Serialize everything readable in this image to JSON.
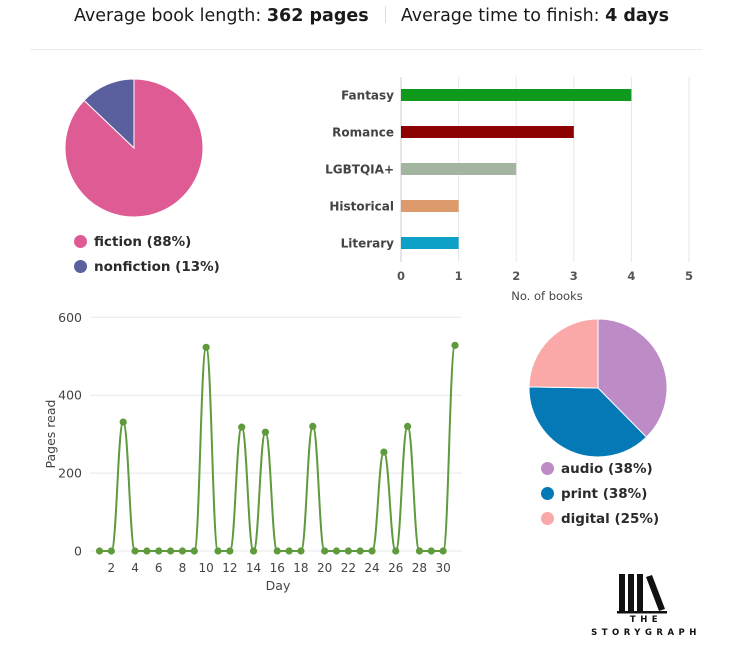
{
  "header": {
    "avg_length_label": "Average book length:",
    "avg_length_value": "362 pages",
    "avg_time_label": "Average time to finish:",
    "avg_time_value": "4 days"
  },
  "colors": {
    "fiction": "#df5b94",
    "nonfiction": "#5a5f9e",
    "fantasy": "#0f9a1e",
    "romance": "#8b0000",
    "lgbtqia": "#a3b5a0",
    "historical": "#dd9b6c",
    "literary": "#0ea1c7",
    "line": "#5f9a3c",
    "audio": "#bd8cc6",
    "print": "#0479b5",
    "digital": "#fba8a8"
  },
  "chart_data": [
    {
      "type": "pie",
      "slices": [
        {
          "label": "fiction (88%)",
          "value": 88,
          "color": "#df5b94"
        },
        {
          "label": "nonfiction (13%)",
          "value": 13,
          "color": "#5a5f9e"
        }
      ],
      "legend_position": "bottom"
    },
    {
      "type": "bar",
      "orientation": "horizontal",
      "categories": [
        "Fantasy",
        "Romance",
        "LGBTQIA+",
        "Historical",
        "Literary"
      ],
      "values": [
        4,
        3,
        2,
        1,
        1
      ],
      "bar_colors": [
        "#0f9a1e",
        "#8b0000",
        "#a3b5a0",
        "#dd9b6c",
        "#0ea1c7"
      ],
      "xlabel": "No. of books",
      "xlim": [
        0,
        5
      ],
      "xticks": [
        "0",
        "1",
        "2",
        "3",
        "4",
        "5"
      ],
      "grid": true
    },
    {
      "type": "line",
      "x": [
        1,
        2,
        3,
        4,
        5,
        6,
        7,
        8,
        9,
        10,
        11,
        12,
        13,
        14,
        15,
        16,
        17,
        18,
        19,
        20,
        21,
        22,
        23,
        24,
        25,
        26,
        27,
        28,
        29,
        30,
        31
      ],
      "values": [
        0,
        0,
        331,
        0,
        0,
        0,
        0,
        0,
        0,
        523,
        0,
        0,
        318,
        0,
        305,
        0,
        0,
        0,
        320,
        0,
        0,
        0,
        0,
        0,
        254,
        0,
        320,
        0,
        0,
        0,
        528
      ],
      "xlabel": "Day",
      "ylabel": "Pages read",
      "ylim": [
        0,
        600
      ],
      "yticks": [
        "0",
        "200",
        "400",
        "600"
      ],
      "xticks": [
        "2",
        "4",
        "6",
        "8",
        "10",
        "12",
        "14",
        "16",
        "18",
        "20",
        "22",
        "24",
        "26",
        "28",
        "30"
      ],
      "grid": true,
      "color": "#5f9a3c"
    },
    {
      "type": "pie",
      "slices": [
        {
          "label": "audio (38%)",
          "value": 38,
          "color": "#bd8cc6"
        },
        {
          "label": "print (38%)",
          "value": 38,
          "color": "#0479b5"
        },
        {
          "label": "digital (25%)",
          "value": 25,
          "color": "#fba8a8"
        }
      ],
      "legend_position": "bottom"
    }
  ],
  "logo": {
    "name": "storygraph-logo-icon",
    "text": "THE STORYGRAPH"
  }
}
